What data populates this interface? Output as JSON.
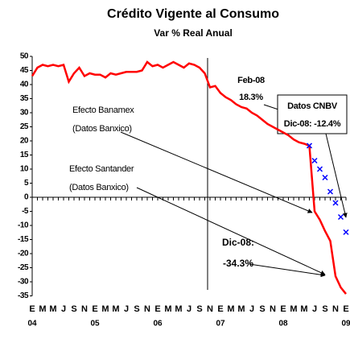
{
  "chart_data": {
    "type": "line",
    "title": "Crédito Vigente al Consumo",
    "subtitle": "Var % Real Anual",
    "categories": [
      "E",
      null,
      "M",
      null,
      "M",
      null,
      "J",
      null,
      "S",
      null,
      "N",
      null,
      "E",
      null,
      "M",
      null,
      "M",
      null,
      "J",
      null,
      "S",
      null,
      "N",
      null,
      "E",
      null,
      "M",
      null,
      "M",
      null,
      "J",
      null,
      "S",
      null,
      "N",
      null,
      "E",
      null,
      "M",
      null,
      "M",
      null,
      "J",
      null,
      "S",
      null,
      "N",
      null,
      "E",
      null,
      "M",
      null,
      "M",
      null,
      "J",
      null,
      "S",
      null,
      "N",
      null,
      "E"
    ],
    "years": [
      "04",
      "05",
      "06",
      "07",
      "08",
      "09"
    ],
    "series": [
      {
        "name": "Datos Banxico",
        "color": "#ff0000",
        "values": [
          43,
          46,
          47,
          46.5,
          47,
          46.5,
          47,
          41,
          44,
          46,
          43,
          44,
          43.5,
          43.5,
          42.5,
          44,
          43.5,
          44,
          44.5,
          44.5,
          44.5,
          45,
          48,
          46.5,
          47,
          46,
          47,
          48,
          47,
          46,
          47.5,
          47,
          46,
          44,
          39,
          39.5,
          37,
          35.5,
          34.5,
          33,
          32,
          31.5,
          30,
          29,
          27.5,
          26,
          25,
          24,
          23,
          22,
          20.5,
          19.5,
          19,
          18.3,
          -5,
          -8,
          -12,
          -15.5,
          -28,
          -32,
          -34.3
        ]
      },
      {
        "name": "Datos CNBV",
        "color": "#0000ff",
        "values": [
          null,
          null,
          null,
          null,
          null,
          null,
          null,
          null,
          null,
          null,
          null,
          null,
          null,
          null,
          null,
          null,
          null,
          null,
          null,
          null,
          null,
          null,
          null,
          null,
          null,
          null,
          null,
          null,
          null,
          null,
          null,
          null,
          null,
          null,
          null,
          null,
          null,
          null,
          null,
          null,
          null,
          null,
          null,
          null,
          null,
          null,
          null,
          null,
          null,
          null,
          null,
          null,
          null,
          18.3,
          13,
          10,
          7,
          2,
          -2,
          -7,
          -12.4
        ]
      }
    ],
    "ylim": [
      -35,
      50
    ],
    "yticks": [
      50,
      45,
      40,
      35,
      30,
      25,
      20,
      15,
      10,
      5,
      0,
      -5,
      -10,
      -15,
      -20,
      -25,
      -30,
      -35
    ],
    "annotations": {
      "feb": [
        "Feb-08",
        "18.3%"
      ],
      "cnbv": [
        "Datos CNBV",
        "Dic-08: -12.4%"
      ],
      "dic": [
        "Dic-08:",
        "-34.3%"
      ],
      "banamex": [
        "Efecto Banamex",
        "(Datos Banxico)"
      ],
      "santander": [
        "Efecto Santander",
        "(Datos Banxico)"
      ]
    }
  }
}
